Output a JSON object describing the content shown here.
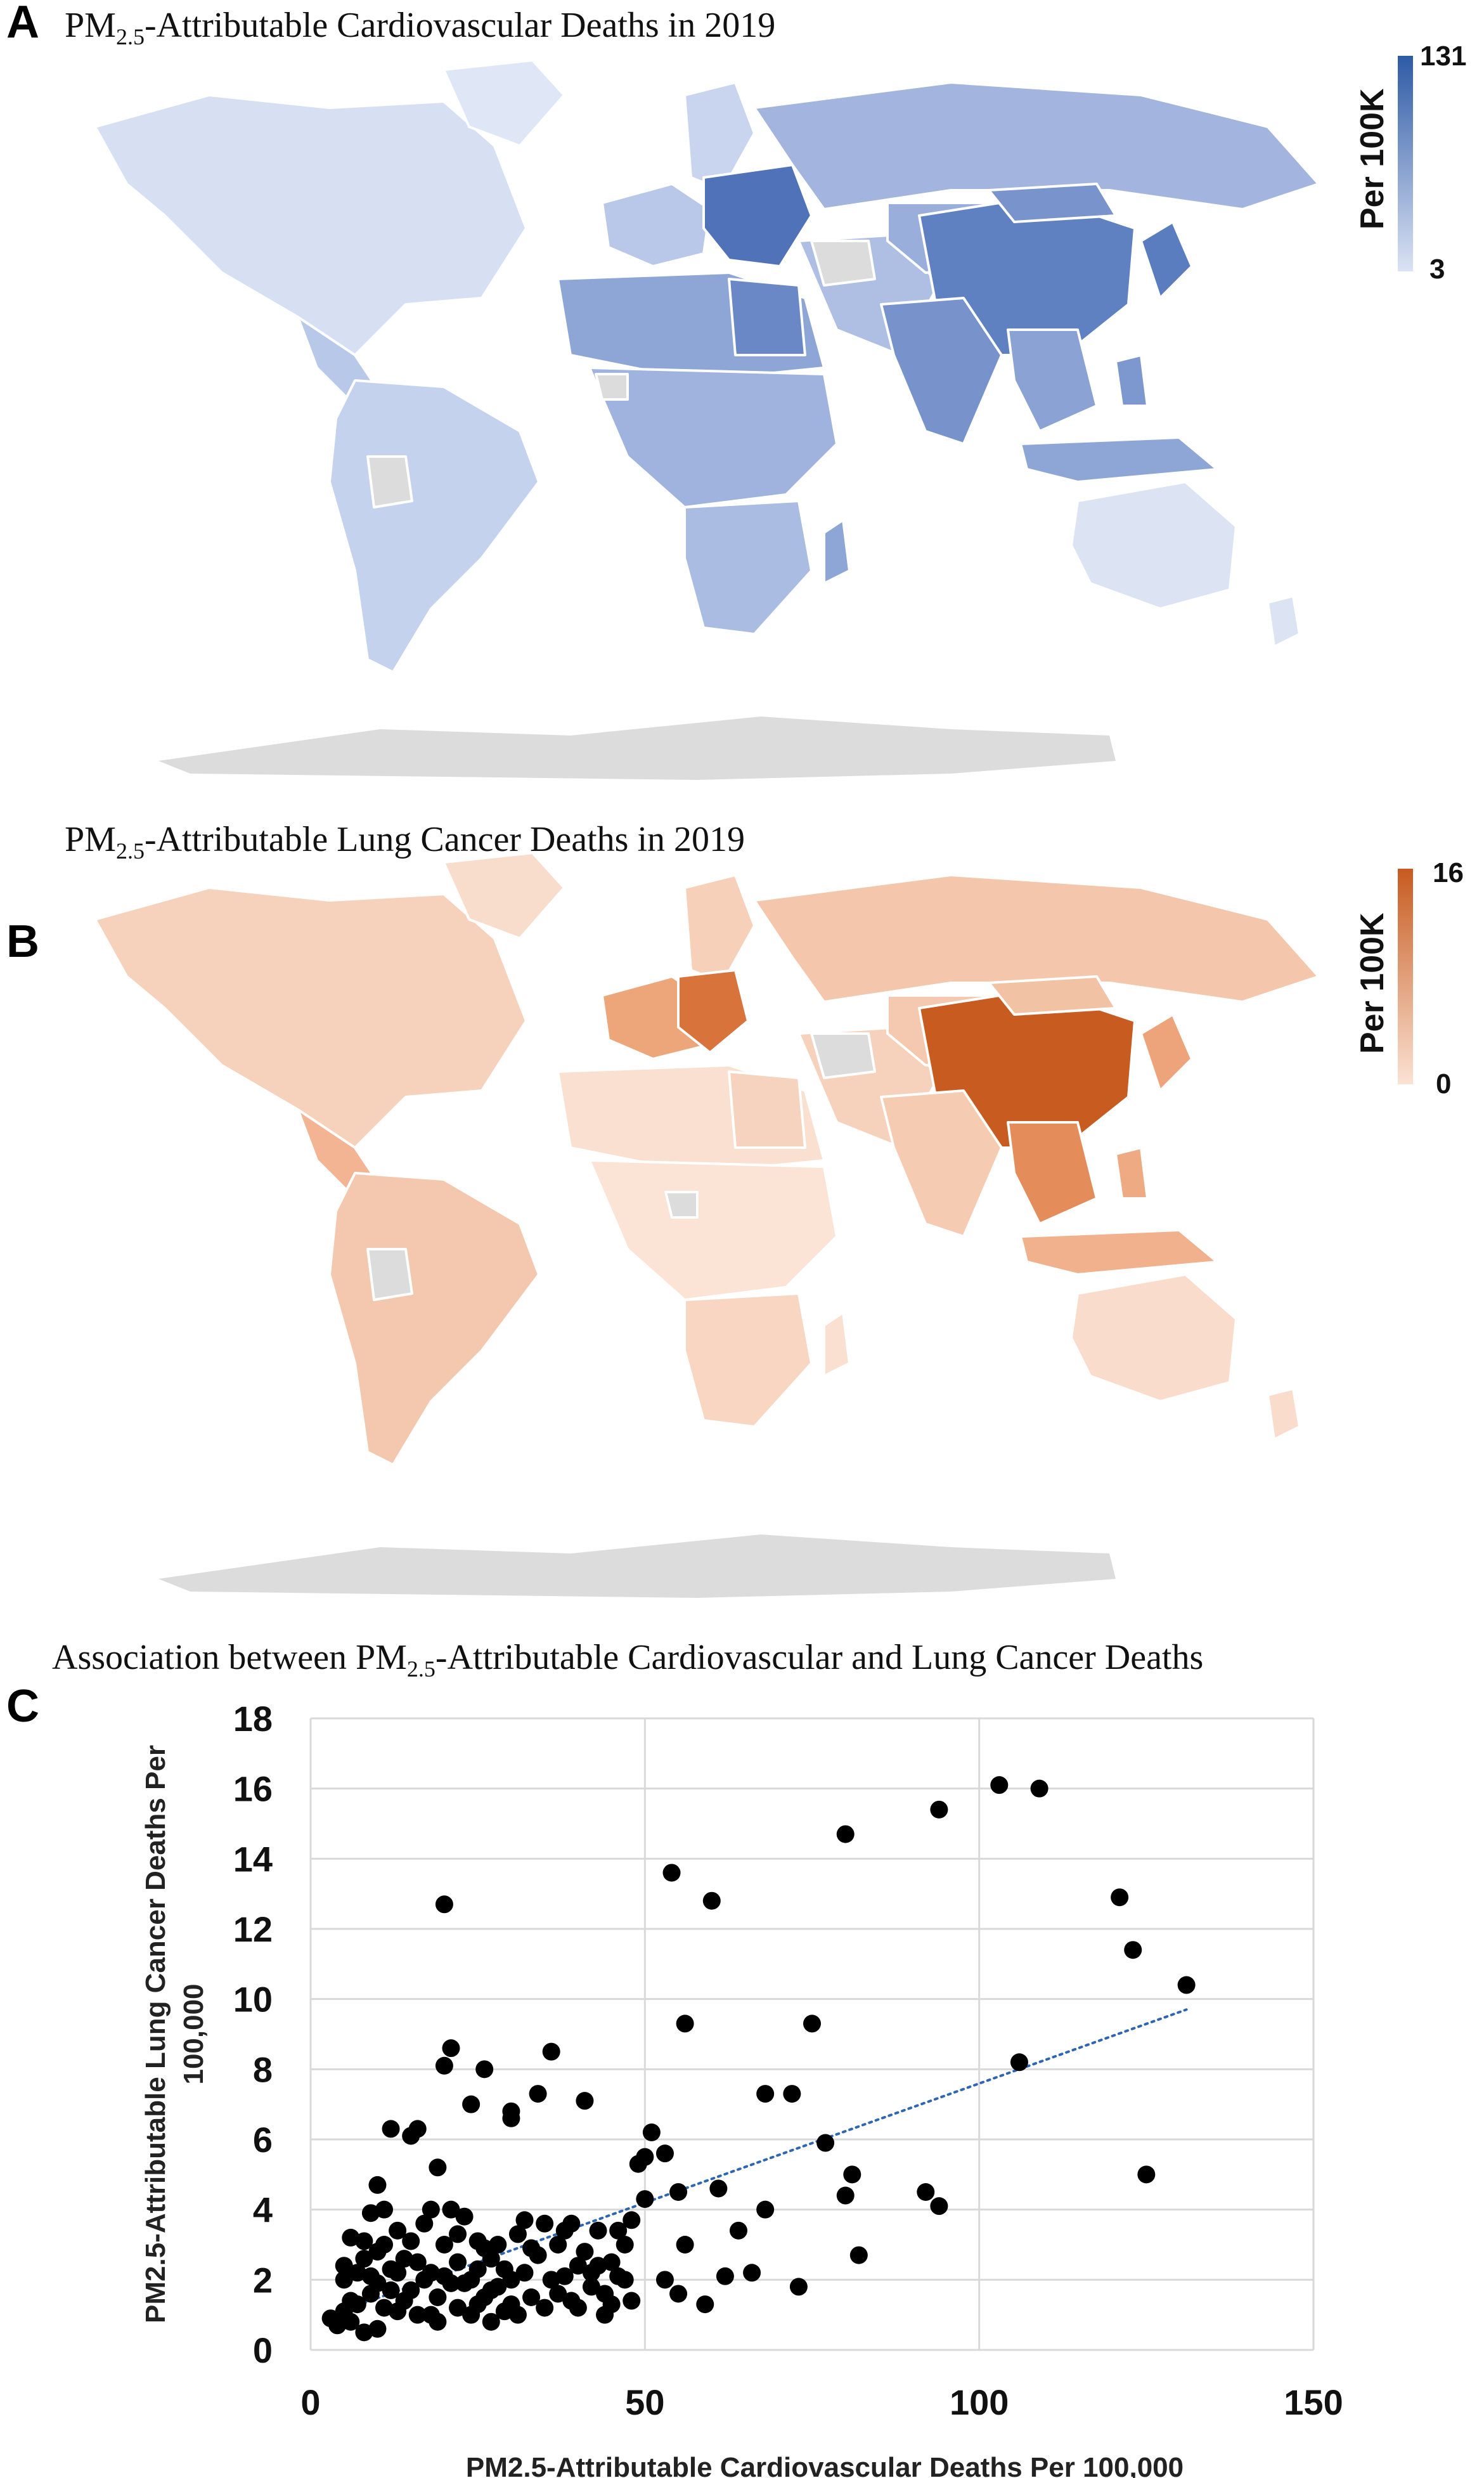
{
  "panel_a": {
    "letter": "A",
    "title_pre": "PM",
    "title_sub": "2.5",
    "title_post": "-Attributable Cardiovascular Deaths in 2019",
    "legend_title": "Per 100K",
    "legend_max": "131",
    "legend_min": "3",
    "color_low": "#dbe3f4",
    "color_high": "#2e5aa6",
    "no_data_color": "#dcdcdc"
  },
  "panel_b": {
    "letter": "B",
    "title_pre": "PM",
    "title_sub": "2.5",
    "title_post": "-Attributable Lung Cancer Deaths in 2019",
    "legend_title": "Per 100K",
    "legend_max": "16",
    "legend_min": "0",
    "color_low": "#fbe2d3",
    "color_high": "#c75b20",
    "no_data_color": "#dcdcdc"
  },
  "panel_c": {
    "letter": "C",
    "title_pre": "Association between PM",
    "title_sub": "2.5",
    "title_post": "-Attributable Cardiovascular and Lung Cancer Deaths"
  },
  "chart_data": {
    "type": "scatter",
    "xlabel": "PM2.5-Attributable Cardiovascular Deaths Per 100,000",
    "ylabel": "PM2.5-Attributable Lung Cancer Deaths Per 100,000",
    "xlim": [
      0,
      150
    ],
    "ylim": [
      0,
      18
    ],
    "xticks": [
      0,
      50,
      100,
      150
    ],
    "yticks": [
      0,
      2,
      4,
      6,
      8,
      10,
      12,
      14,
      16,
      18
    ],
    "grid": true,
    "marker_color": "#000000",
    "trendline": {
      "style": "dotted",
      "color": "#2f66b3",
      "from": [
        3,
        1.0
      ],
      "to": [
        131,
        9.7
      ]
    },
    "points": [
      [
        20,
        12.7
      ],
      [
        54,
        13.6
      ],
      [
        60,
        12.8
      ],
      [
        80,
        14.7
      ],
      [
        94,
        15.4
      ],
      [
        103,
        16.1
      ],
      [
        109,
        16.0
      ],
      [
        121,
        12.9
      ],
      [
        123,
        11.4
      ],
      [
        131,
        10.4
      ],
      [
        125,
        5.0
      ],
      [
        106,
        8.2
      ],
      [
        94,
        4.1
      ],
      [
        92,
        4.5
      ],
      [
        82,
        2.7
      ],
      [
        81,
        5.0
      ],
      [
        80,
        4.4
      ],
      [
        77,
        5.9
      ],
      [
        75,
        9.3
      ],
      [
        72,
        7.3
      ],
      [
        73,
        1.8
      ],
      [
        68,
        7.3
      ],
      [
        68,
        4.0
      ],
      [
        66,
        2.2
      ],
      [
        64,
        3.4
      ],
      [
        62,
        2.1
      ],
      [
        61,
        4.6
      ],
      [
        59,
        1.3
      ],
      [
        56,
        9.3
      ],
      [
        56,
        3.0
      ],
      [
        55,
        4.5
      ],
      [
        53,
        5.6
      ],
      [
        53,
        2.0
      ],
      [
        55,
        1.6
      ],
      [
        51,
        6.2
      ],
      [
        50,
        5.5
      ],
      [
        50,
        4.3
      ],
      [
        49,
        5.3
      ],
      [
        48,
        3.7
      ],
      [
        47,
        3.0
      ],
      [
        46,
        2.1
      ],
      [
        45,
        1.3
      ],
      [
        45,
        2.5
      ],
      [
        44,
        1.6
      ],
      [
        43,
        3.4
      ],
      [
        42,
        2.2
      ],
      [
        41,
        7.1
      ],
      [
        40,
        1.2
      ],
      [
        40,
        2.4
      ],
      [
        39,
        3.6
      ],
      [
        38,
        2.1
      ],
      [
        37,
        1.6
      ],
      [
        36,
        8.5
      ],
      [
        35,
        1.2
      ],
      [
        34,
        2.7
      ],
      [
        34,
        7.3
      ],
      [
        33,
        1.5
      ],
      [
        32,
        2.2
      ],
      [
        31,
        3.3
      ],
      [
        30,
        6.8
      ],
      [
        30,
        6.6
      ],
      [
        30,
        1.3
      ],
      [
        29,
        2.3
      ],
      [
        28,
        3.0
      ],
      [
        27,
        1.7
      ],
      [
        26,
        8.0
      ],
      [
        26,
        2.9
      ],
      [
        25,
        1.3
      ],
      [
        25,
        2.3
      ],
      [
        24,
        7.0
      ],
      [
        23,
        1.9
      ],
      [
        23,
        3.8
      ],
      [
        22,
        1.2
      ],
      [
        22,
        2.5
      ],
      [
        21,
        8.6
      ],
      [
        21,
        4.0
      ],
      [
        20,
        8.1
      ],
      [
        20,
        3.0
      ],
      [
        19,
        5.2
      ],
      [
        19,
        1.5
      ],
      [
        18,
        4.0
      ],
      [
        18,
        2.2
      ],
      [
        17,
        3.6
      ],
      [
        16,
        2.5
      ],
      [
        16,
        6.3
      ],
      [
        15,
        6.1
      ],
      [
        15,
        1.7
      ],
      [
        14,
        2.6
      ],
      [
        13,
        1.1
      ],
      [
        13,
        3.4
      ],
      [
        12,
        6.3
      ],
      [
        12,
        2.3
      ],
      [
        11,
        4.0
      ],
      [
        11,
        1.2
      ],
      [
        10,
        4.7
      ],
      [
        10,
        2.8
      ],
      [
        10,
        0.6
      ],
      [
        9,
        3.9
      ],
      [
        9,
        1.6
      ],
      [
        8,
        2.6
      ],
      [
        8,
        3.1
      ],
      [
        7,
        1.3
      ],
      [
        7,
        2.2
      ],
      [
        6,
        3.2
      ],
      [
        6,
        0.8
      ],
      [
        5,
        2.0
      ],
      [
        5,
        1.1
      ],
      [
        4,
        0.7
      ],
      [
        3,
        0.9
      ],
      [
        30,
        2.0
      ],
      [
        27,
        2.6
      ],
      [
        33,
        2.9
      ],
      [
        36,
        2.0
      ],
      [
        38,
        3.4
      ],
      [
        42,
        1.8
      ],
      [
        31,
        1.0
      ],
      [
        24,
        1.0
      ],
      [
        21,
        1.9
      ],
      [
        26,
        1.5
      ],
      [
        28,
        1.8
      ],
      [
        18,
        1.0
      ],
      [
        17,
        2.0
      ],
      [
        14,
        1.4
      ],
      [
        15,
        3.1
      ],
      [
        12,
        1.7
      ],
      [
        9,
        2.1
      ],
      [
        8,
        0.5
      ],
      [
        11,
        3.0
      ],
      [
        13,
        2.2
      ],
      [
        22,
        3.3
      ],
      [
        24,
        2.0
      ],
      [
        29,
        1.1
      ],
      [
        35,
        3.6
      ],
      [
        41,
        2.8
      ],
      [
        44,
        1.0
      ],
      [
        47,
        2.0
      ],
      [
        39,
        1.4
      ],
      [
        32,
        3.7
      ],
      [
        27,
        0.8
      ],
      [
        19,
        0.8
      ],
      [
        16,
        1.0
      ],
      [
        6,
        1.4
      ],
      [
        5,
        2.4
      ],
      [
        10,
        1.9
      ],
      [
        20,
        2.1
      ],
      [
        25,
        3.1
      ],
      [
        37,
        3.0
      ],
      [
        43,
        2.4
      ],
      [
        46,
        3.4
      ],
      [
        48,
        1.4
      ]
    ]
  }
}
